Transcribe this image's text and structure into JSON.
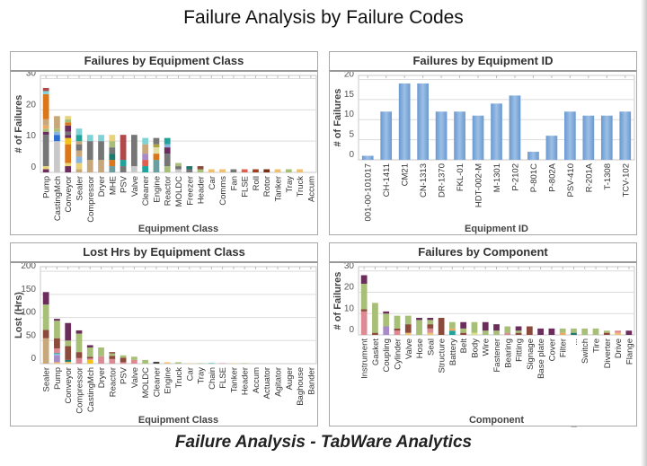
{
  "page": {
    "title": "Failure Analysis by Failure Codes",
    "footer": "Failure Analysis - TabWare Analytics"
  },
  "palette": {
    "gray": "#767676",
    "lgray": "#c9c9c9",
    "orange": "#d9771a",
    "lorange": "#f0a860",
    "tan": "#c8a87a",
    "teal": "#1fa39b",
    "lcyan": "#7fd3d6",
    "purple": "#6b2d5c",
    "green": "#a8bf78",
    "pink": "#dc8a94",
    "brown": "#8c4a3c",
    "red": "#b04a4a",
    "yellow": "#f2c41a",
    "lyellow": "#e8d27a",
    "blue": "#2a6fcf",
    "lblue": "#8ab4e0",
    "dteal": "#1f7a6e",
    "tgray": "#6a9fa0",
    "lilac": "#a98ac8",
    "cream": "#e2e0a8",
    "olive": "#b0a040",
    "sand": "#f0c070",
    "flse": "#e06050",
    "rust": "#a0401c",
    "dbrown": "#7a2f10",
    "dark": "#444444",
    "ygreen": "#d8e080",
    "steel": "#7fa9d6"
  },
  "chart_data": [
    {
      "type": "bar",
      "stacked": true,
      "title": "Failures by Equipment Class",
      "xlabel": "Equipment Class",
      "ylabel": "# of Failures",
      "ylim": [
        0,
        31
      ],
      "yticks": [
        0,
        10,
        20,
        30
      ],
      "grid": true,
      "categories": [
        "Pump",
        "CastingMch",
        "Conveyor",
        "Sealer",
        "Compressor",
        "Dryer",
        "MHE",
        "PSV",
        "Valve",
        "Cleaner",
        "Engine",
        "Reactor",
        "MOLDC",
        "Freezer",
        "Header",
        "Car",
        "Comms",
        "Fan",
        "FLSE",
        "Roll",
        "Rotor",
        "Tanker",
        "Tray",
        "Truck",
        "Accum"
      ],
      "values": [
        27,
        18,
        18,
        14,
        12,
        12,
        12,
        12,
        12,
        11,
        11,
        11,
        3,
        2,
        2,
        1,
        1,
        1,
        1,
        1,
        1,
        1,
        1,
        1,
        0
      ],
      "segments": [
        [
          [
            1,
            "purple"
          ],
          [
            1,
            "lyellow"
          ],
          [
            10,
            "gray"
          ],
          [
            1,
            "purple"
          ],
          [
            1,
            "green"
          ],
          [
            1,
            "lorange"
          ],
          [
            2,
            "tan"
          ],
          [
            8,
            "orange"
          ],
          [
            1,
            "lcyan"
          ],
          [
            1,
            "red"
          ]
        ],
        [
          [
            10,
            "lgray"
          ],
          [
            2,
            "blue"
          ],
          [
            1,
            "lblue"
          ],
          [
            1,
            "green"
          ],
          [
            4,
            "tan"
          ]
        ],
        [
          [
            2,
            "purple"
          ],
          [
            1,
            "lyellow"
          ],
          [
            6,
            "orange"
          ],
          [
            2,
            "yellow"
          ],
          [
            1,
            "purple"
          ],
          [
            1,
            "gray"
          ],
          [
            2,
            "purple"
          ],
          [
            1,
            "orange"
          ],
          [
            1,
            "green"
          ],
          [
            1,
            "lyellow"
          ]
        ],
        [
          [
            1,
            "tan"
          ],
          [
            2,
            "lyellow"
          ],
          [
            2,
            "lblue"
          ],
          [
            2,
            "tan"
          ],
          [
            2,
            "gray"
          ],
          [
            1,
            "tan"
          ],
          [
            2,
            "teal"
          ],
          [
            2,
            "lcyan"
          ]
        ],
        [
          [
            4,
            "tan"
          ],
          [
            6,
            "gray"
          ],
          [
            2,
            "lcyan"
          ]
        ],
        [
          [
            4,
            "tan"
          ],
          [
            6,
            "gray"
          ],
          [
            2,
            "lcyan"
          ]
        ],
        [
          [
            2,
            "tgray"
          ],
          [
            2,
            "orange"
          ],
          [
            2,
            "dteal"
          ],
          [
            2,
            "gray"
          ],
          [
            2,
            "green"
          ],
          [
            2,
            "lyellow"
          ]
        ],
        [
          [
            2,
            "gray"
          ],
          [
            2,
            "teal"
          ],
          [
            8,
            "red"
          ]
        ],
        [
          [
            2,
            "lgray"
          ],
          [
            10,
            "gray"
          ]
        ],
        [
          [
            2,
            "teal"
          ],
          [
            2,
            "flse"
          ],
          [
            2,
            "lilac"
          ],
          [
            3,
            "tan"
          ],
          [
            2,
            "lcyan"
          ]
        ],
        [
          [
            4,
            "tgray"
          ],
          [
            2,
            "orange"
          ],
          [
            2,
            "cream"
          ],
          [
            1,
            "olive"
          ],
          [
            2,
            "gray"
          ]
        ],
        [
          [
            2,
            "green"
          ],
          [
            4,
            "gray"
          ],
          [
            2,
            "purple"
          ],
          [
            1,
            "lblue"
          ],
          [
            2,
            "teal"
          ]
        ],
        [
          [
            1,
            "lgray"
          ],
          [
            1,
            "gray"
          ],
          [
            1,
            "green"
          ]
        ],
        [
          [
            1,
            "gray"
          ],
          [
            1,
            "dteal"
          ]
        ],
        [
          [
            1,
            "green"
          ],
          [
            1,
            "brown"
          ]
        ],
        [
          [
            1,
            "sand"
          ]
        ],
        [
          [
            1,
            "sand"
          ]
        ],
        [
          [
            1,
            "gray"
          ]
        ],
        [
          [
            1,
            "flse"
          ]
        ],
        [
          [
            1,
            "rust"
          ]
        ],
        [
          [
            1,
            "dbrown"
          ]
        ],
        [
          [
            1,
            "sand"
          ]
        ],
        [
          [
            1,
            "green"
          ]
        ],
        [
          [
            1,
            "sand"
          ]
        ],
        []
      ]
    },
    {
      "type": "bar",
      "stacked": false,
      "title": "Failures by Equipment ID",
      "xlabel": "Equipment ID",
      "ylabel": "# of Failures",
      "ylim": [
        0,
        21
      ],
      "yticks": [
        0,
        5,
        10,
        15,
        20
      ],
      "grid": true,
      "categories": [
        "001-00-101017",
        "CH-1411",
        "CM21",
        "CN-1313",
        "DR-1370",
        "FKL-01",
        "HDT-002-M",
        "M-1301",
        "P-2102",
        "P-801C",
        "P-802A",
        "PSV-410",
        "R-201A",
        "T-1308",
        "TCV-102"
      ],
      "values": [
        1,
        12,
        19,
        19,
        12,
        12,
        11,
        14,
        16,
        2,
        6,
        12,
        11,
        11,
        12
      ],
      "color": "steel"
    },
    {
      "type": "bar",
      "stacked": true,
      "title": "Lost Hrs by Equipment Class",
      "xlabel": "Equipment Class",
      "ylabel": "Lost (Hrs)",
      "ylim": [
        0,
        210
      ],
      "yticks": [
        0,
        50,
        100,
        150,
        200
      ],
      "grid": true,
      "categories": [
        "Sealer",
        "Pump",
        "Conveyor",
        "Compressor",
        "CastingMch",
        "Dryer",
        "Reactor",
        "PSV",
        "Valve",
        "MOLDC",
        "Cleaner",
        "Engine",
        "Truck",
        "Car",
        "Tray",
        "Chain",
        "FLSE",
        "Tanker",
        "Header",
        "Accum",
        "Actuator",
        "Agitator",
        "Auger",
        "Baghouse",
        "Bander"
      ],
      "values": [
        155,
        97,
        88,
        72,
        40,
        35,
        25,
        18,
        15,
        8,
        4,
        3,
        3,
        1,
        1,
        1,
        1,
        1,
        1,
        0,
        0,
        0,
        0,
        0,
        0
      ],
      "segments": [
        [
          [
            55,
            "tan"
          ],
          [
            18,
            "brown"
          ],
          [
            55,
            "green"
          ],
          [
            27,
            "purple"
          ]
        ],
        [
          [
            3,
            "sand"
          ],
          [
            15,
            "lilac"
          ],
          [
            3,
            "lblue"
          ],
          [
            2,
            "teal"
          ],
          [
            10,
            "pink"
          ],
          [
            22,
            "brown"
          ],
          [
            38,
            "green"
          ],
          [
            4,
            "purple"
          ]
        ],
        [
          [
            4,
            "sand"
          ],
          [
            4,
            "dteal"
          ],
          [
            30,
            "brown"
          ],
          [
            12,
            "green"
          ],
          [
            38,
            "purple"
          ]
        ],
        [
          [
            12,
            "pink"
          ],
          [
            13,
            "brown"
          ],
          [
            40,
            "green"
          ],
          [
            7,
            "purple"
          ]
        ],
        [
          [
            8,
            "yellow"
          ],
          [
            3,
            "pink"
          ],
          [
            4,
            "brown"
          ],
          [
            20,
            "green"
          ],
          [
            5,
            "purple"
          ]
        ],
        [
          [
            16,
            "pink"
          ],
          [
            19,
            "green"
          ]
        ],
        [
          [
            10,
            "pink"
          ],
          [
            7,
            "brown"
          ],
          [
            5,
            "green"
          ],
          [
            3,
            "brown"
          ]
        ],
        [
          [
            3,
            "pink"
          ],
          [
            10,
            "brown"
          ],
          [
            5,
            "green"
          ]
        ],
        [
          [
            8,
            "pink"
          ],
          [
            7,
            "green"
          ]
        ],
        [
          [
            8,
            "green"
          ]
        ],
        [
          [
            4,
            "dark"
          ]
        ],
        [
          [
            3,
            "sand"
          ]
        ],
        [
          [
            3,
            "green"
          ]
        ],
        [
          [
            1,
            "sand"
          ]
        ],
        [
          [
            1,
            "green"
          ]
        ],
        [
          [
            1,
            "teal"
          ]
        ],
        [
          [
            1,
            "pink"
          ]
        ],
        [
          [
            1,
            "sand"
          ]
        ],
        [
          [
            1,
            "green"
          ]
        ],
        [],
        [],
        [],
        [],
        [],
        []
      ]
    },
    {
      "type": "bar",
      "stacked": true,
      "title": "Failures by Component",
      "xlabel": "Component",
      "ylabel": "# of Failures",
      "ylim": [
        0,
        32
      ],
      "yticks": [
        0,
        10,
        20,
        30
      ],
      "grid": true,
      "categories": [
        "Instrument",
        "Gasket",
        "Coupling",
        "Cylinder",
        "Valve",
        "Hose",
        "Seal",
        "Structure",
        "Battery",
        "Belt",
        "Body",
        "Wire",
        "Fastener",
        "Bearing",
        "Fitting",
        "Signage",
        "Base plate",
        "Cover",
        "Filter",
        "...",
        "Switch",
        "Tire",
        "Diverter",
        "Drive",
        "Flange"
      ],
      "extra_label": "Roll",
      "values": [
        28,
        15,
        11,
        9,
        9,
        8,
        8,
        8,
        6,
        6,
        6,
        6,
        5,
        4,
        4,
        4,
        3,
        3,
        3,
        3,
        3,
        3,
        2,
        2,
        2
      ],
      "segments": [
        [
          [
            11,
            "pink"
          ],
          [
            1,
            "brown"
          ],
          [
            12,
            "green"
          ],
          [
            4,
            "purple"
          ]
        ],
        [
          [
            1,
            "brown"
          ],
          [
            14,
            "green"
          ]
        ],
        [
          [
            4,
            "lilac"
          ],
          [
            6,
            "green"
          ],
          [
            1,
            "purple"
          ]
        ],
        [
          [
            2,
            "pink"
          ],
          [
            1,
            "brown"
          ],
          [
            6,
            "green"
          ]
        ],
        [
          [
            1,
            "sand"
          ],
          [
            4,
            "brown"
          ],
          [
            4,
            "green"
          ]
        ],
        [
          [
            7,
            "green"
          ],
          [
            1,
            "purple"
          ]
        ],
        [
          [
            1,
            "sand"
          ],
          [
            2,
            "pink"
          ],
          [
            2,
            "brown"
          ],
          [
            2,
            "green"
          ],
          [
            1,
            "purple"
          ]
        ],
        [
          [
            8,
            "brown"
          ]
        ],
        [
          [
            2,
            "teal"
          ],
          [
            1,
            "lorange"
          ],
          [
            3,
            "green"
          ]
        ],
        [
          [
            1,
            "brown"
          ],
          [
            2,
            "green"
          ],
          [
            3,
            "purple"
          ]
        ],
        [
          [
            1,
            "ygreen"
          ],
          [
            5,
            "green"
          ]
        ],
        [
          [
            2,
            "green"
          ],
          [
            4,
            "purple"
          ]
        ],
        [
          [
            2,
            "green"
          ],
          [
            3,
            "purple"
          ]
        ],
        [
          [
            1,
            "pink"
          ],
          [
            3,
            "green"
          ]
        ],
        [
          [
            1,
            "brown"
          ],
          [
            1,
            "green"
          ],
          [
            2,
            "purple"
          ]
        ],
        [
          [
            4,
            "brown"
          ]
        ],
        [
          [
            3,
            "purple"
          ]
        ],
        [
          [
            3,
            "purple"
          ]
        ],
        [
          [
            1,
            "lorange"
          ],
          [
            2,
            "green"
          ]
        ],
        [
          [
            1,
            "dteal"
          ],
          [
            2,
            "green"
          ]
        ],
        [
          [
            3,
            "green"
          ]
        ],
        [
          [
            3,
            "green"
          ]
        ],
        [
          [
            1,
            "brown"
          ],
          [
            1,
            "green"
          ]
        ],
        [
          [
            1,
            "sand"
          ],
          [
            1,
            "pink"
          ]
        ],
        [
          [
            2,
            "purple"
          ]
        ]
      ]
    }
  ]
}
